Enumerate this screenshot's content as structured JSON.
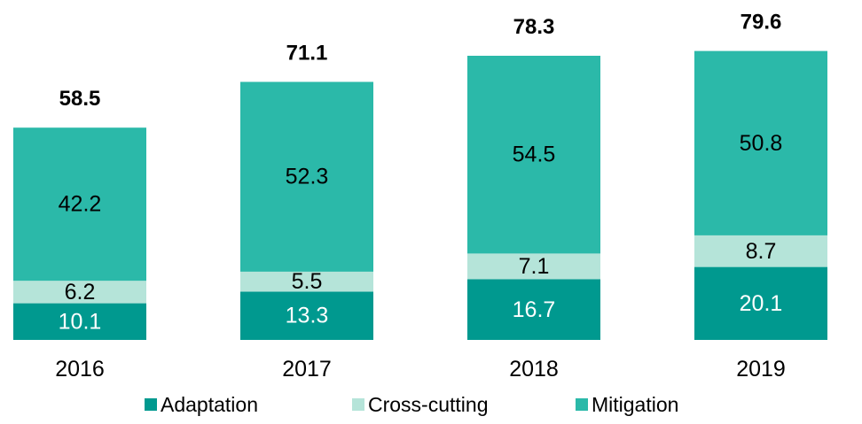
{
  "chart_data": {
    "type": "bar",
    "stacked": true,
    "categories": [
      "2016",
      "2017",
      "2018",
      "2019"
    ],
    "series": [
      {
        "name": "Adaptation",
        "values": [
          10.1,
          13.3,
          16.7,
          20.1
        ],
        "color": "#00998F",
        "label_color": "#FFFFFF"
      },
      {
        "name": "Cross-cutting",
        "values": [
          6.2,
          5.5,
          7.1,
          8.7
        ],
        "color": "#B5E4D9",
        "label_color": "#000000"
      },
      {
        "name": "Mitigation",
        "values": [
          42.2,
          52.3,
          54.5,
          50.8
        ],
        "color": "#2BB9A9",
        "label_color": "#000000"
      }
    ],
    "totals": [
      "58.5",
      "71.1",
      "78.3",
      "79.6"
    ],
    "segment_labels": [
      [
        "10.1",
        "13.3",
        "16.7",
        "20.1"
      ],
      [
        "6.2",
        "5.5",
        "7.1",
        "8.7"
      ],
      [
        "42.2",
        "52.3",
        "54.5",
        "50.8"
      ]
    ],
    "title": "",
    "xlabel": "",
    "ylabel": "",
    "ylim": [
      0,
      80
    ],
    "grid": false,
    "legend_position": "bottom"
  }
}
